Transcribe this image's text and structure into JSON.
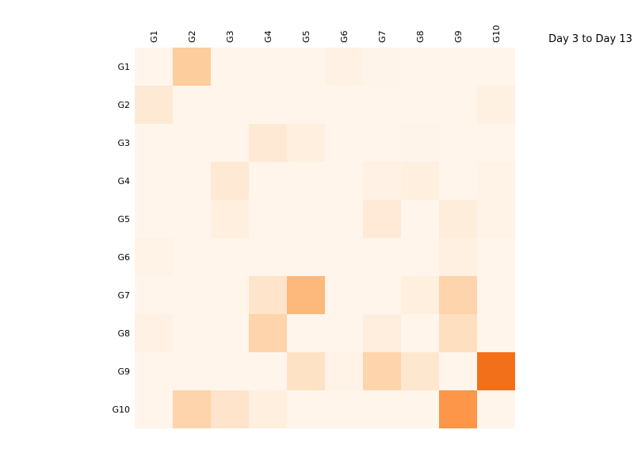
{
  "chart_data": {
    "type": "heatmap",
    "title": "Day 3 to Day 13",
    "x_categories": [
      "G1",
      "G2",
      "G3",
      "G4",
      "G5",
      "G6",
      "G7",
      "G8",
      "G9",
      "G10"
    ],
    "y_categories": [
      "G1",
      "G2",
      "G3",
      "G4",
      "G5",
      "G6",
      "G7",
      "G8",
      "G9",
      "G10"
    ],
    "values": [
      [
        0.0,
        0.35,
        0.0,
        0.0,
        0.0,
        0.04,
        0.01,
        0.0,
        0.0,
        0.0
      ],
      [
        0.13,
        0.0,
        0.0,
        0.0,
        0.0,
        0.0,
        0.0,
        0.0,
        0.0,
        0.05
      ],
      [
        0.0,
        0.0,
        0.0,
        0.13,
        0.07,
        0.0,
        0.0,
        0.01,
        0.0,
        0.0
      ],
      [
        0.0,
        0.0,
        0.13,
        0.0,
        0.0,
        0.0,
        0.04,
        0.07,
        0.0,
        0.03
      ],
      [
        0.0,
        0.0,
        0.07,
        0.0,
        0.0,
        0.0,
        0.12,
        0.0,
        0.09,
        0.02
      ],
      [
        0.02,
        0.0,
        0.0,
        0.0,
        0.0,
        0.0,
        0.0,
        0.0,
        0.06,
        0.0
      ],
      [
        0.0,
        0.0,
        0.0,
        0.18,
        0.45,
        0.0,
        0.0,
        0.07,
        0.3,
        0.0
      ],
      [
        0.04,
        0.0,
        0.0,
        0.3,
        0.0,
        0.0,
        0.08,
        0.0,
        0.22,
        0.0
      ],
      [
        0.0,
        0.0,
        0.0,
        0.0,
        0.2,
        0.03,
        0.3,
        0.16,
        0.0,
        0.8
      ],
      [
        0.0,
        0.3,
        0.18,
        0.07,
        0.0,
        0.0,
        0.0,
        0.0,
        0.62,
        0.0
      ]
    ],
    "colormap": [
      "#fff5eb",
      "#fee6ce",
      "#fdd0a2",
      "#fdae6b",
      "#fd8d3c",
      "#f16913",
      "#d94801"
    ],
    "value_range": [
      0,
      1
    ],
    "x_tick_position": "top",
    "x_tick_rotation": "vertical",
    "title_position": "top-right",
    "grid": false,
    "legend": false
  }
}
